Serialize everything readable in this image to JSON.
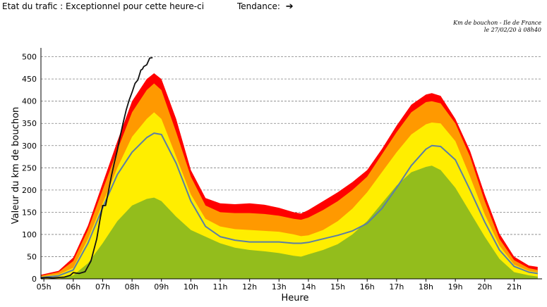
{
  "header": {
    "status_label": "Etat du trafic :",
    "status_value": "Exceptionnel pour cette heure-ci",
    "trend_label": "Tendance:",
    "trend_icon": "right-arrow-icon",
    "trend_glyph": "➔"
  },
  "caption": {
    "line1": "Km de bouchon - Ile de France",
    "line2": "le 27/02/20 à 08h40"
  },
  "chart_data": {
    "type": "area",
    "title": "",
    "xlabel": "Heure",
    "ylabel": "Valeur du  km de bouchon",
    "x_tick_labels": [
      "05h",
      "06h",
      "07h",
      "08h",
      "09h",
      "10h",
      "11h",
      "12h",
      "13h",
      "14h",
      "15h",
      "16h",
      "17h",
      "18h",
      "19h",
      "20h",
      "21h"
    ],
    "y_ticks": [
      0,
      50,
      100,
      150,
      200,
      250,
      300,
      350,
      400,
      450,
      500
    ],
    "xlim": [
      4.9,
      21.95
    ],
    "ylim": [
      0,
      520
    ],
    "grid": true,
    "x": [
      4.9,
      5.5,
      6.0,
      6.5,
      7.0,
      7.5,
      8.0,
      8.5,
      8.75,
      9.0,
      9.5,
      10.0,
      10.5,
      11.0,
      11.5,
      12.0,
      12.5,
      13.0,
      13.5,
      13.75,
      14.0,
      14.5,
      15.0,
      15.5,
      16.0,
      16.5,
      17.0,
      17.5,
      18.0,
      18.2,
      18.5,
      19.0,
      19.5,
      20.0,
      20.5,
      21.0,
      21.5,
      21.8
    ],
    "bands": [
      {
        "name": "",
        "color": "#93bd1c",
        "values": [
          0,
          0,
          8,
          35,
          80,
          130,
          165,
          180,
          183,
          175,
          140,
          110,
          95,
          80,
          70,
          65,
          62,
          58,
          52,
          50,
          55,
          65,
          78,
          100,
          130,
          170,
          210,
          240,
          252,
          255,
          245,
          205,
          150,
          95,
          45,
          15,
          8,
          5
        ]
      },
      {
        "name": "",
        "color": "#ffee00",
        "values": [
          5,
          10,
          25,
          90,
          170,
          250,
          320,
          360,
          375,
          360,
          275,
          190,
          135,
          118,
          112,
          110,
          108,
          106,
          100,
          96,
          98,
          110,
          130,
          158,
          195,
          240,
          285,
          325,
          348,
          352,
          350,
          310,
          230,
          145,
          75,
          32,
          18,
          15
        ]
      },
      {
        "name": "",
        "color": "#ff9900",
        "values": [
          7,
          15,
          40,
          110,
          200,
          290,
          375,
          425,
          440,
          425,
          330,
          230,
          165,
          150,
          148,
          148,
          146,
          142,
          135,
          133,
          138,
          155,
          175,
          200,
          230,
          280,
          330,
          375,
          398,
          400,
          395,
          350,
          275,
          175,
          90,
          42,
          24,
          20
        ]
      },
      {
        "name": "",
        "color": "#ff0000",
        "values": [
          9,
          18,
          48,
          120,
          215,
          310,
          400,
          450,
          463,
          450,
          360,
          245,
          182,
          170,
          168,
          170,
          167,
          160,
          150,
          147,
          155,
          175,
          195,
          218,
          245,
          292,
          345,
          392,
          415,
          418,
          412,
          360,
          288,
          190,
          102,
          50,
          30,
          27
        ]
      }
    ],
    "series": [
      {
        "name": "",
        "color": "#5b7ea6",
        "x": [
          4.9,
          5.5,
          6.0,
          6.5,
          7.0,
          7.5,
          8.0,
          8.5,
          8.75,
          9.0,
          9.5,
          10.0,
          10.5,
          11.0,
          11.5,
          12.0,
          12.5,
          13.0,
          13.5,
          13.75,
          14.0,
          14.5,
          15.0,
          15.5,
          16.0,
          16.5,
          17.0,
          17.5,
          18.0,
          18.2,
          18.5,
          19.0,
          19.5,
          20.0,
          20.5,
          21.0,
          21.5,
          21.8
        ],
        "values": [
          3,
          7,
          20,
          80,
          160,
          235,
          285,
          318,
          328,
          325,
          260,
          175,
          118,
          95,
          87,
          83,
          83,
          83,
          80,
          80,
          82,
          90,
          98,
          108,
          125,
          158,
          205,
          255,
          292,
          300,
          298,
          268,
          200,
          128,
          65,
          28,
          15,
          12
        ]
      },
      {
        "name": "",
        "color": "#111111",
        "x": [
          4.9,
          5.1,
          5.3,
          5.5,
          5.7,
          5.9,
          6.0,
          6.2,
          6.4,
          6.6,
          6.8,
          6.9,
          7.0,
          7.1,
          7.2,
          7.3,
          7.4,
          7.5,
          7.6,
          7.7,
          7.8,
          7.9,
          8.0,
          8.1,
          8.2,
          8.3,
          8.35,
          8.4,
          8.5,
          8.6,
          8.7
        ],
        "values": [
          2,
          3,
          2,
          3,
          4,
          8,
          14,
          12,
          16,
          40,
          90,
          130,
          165,
          165,
          198,
          232,
          262,
          290,
          322,
          352,
          380,
          402,
          420,
          440,
          448,
          470,
          472,
          478,
          482,
          497,
          498
        ]
      }
    ]
  }
}
